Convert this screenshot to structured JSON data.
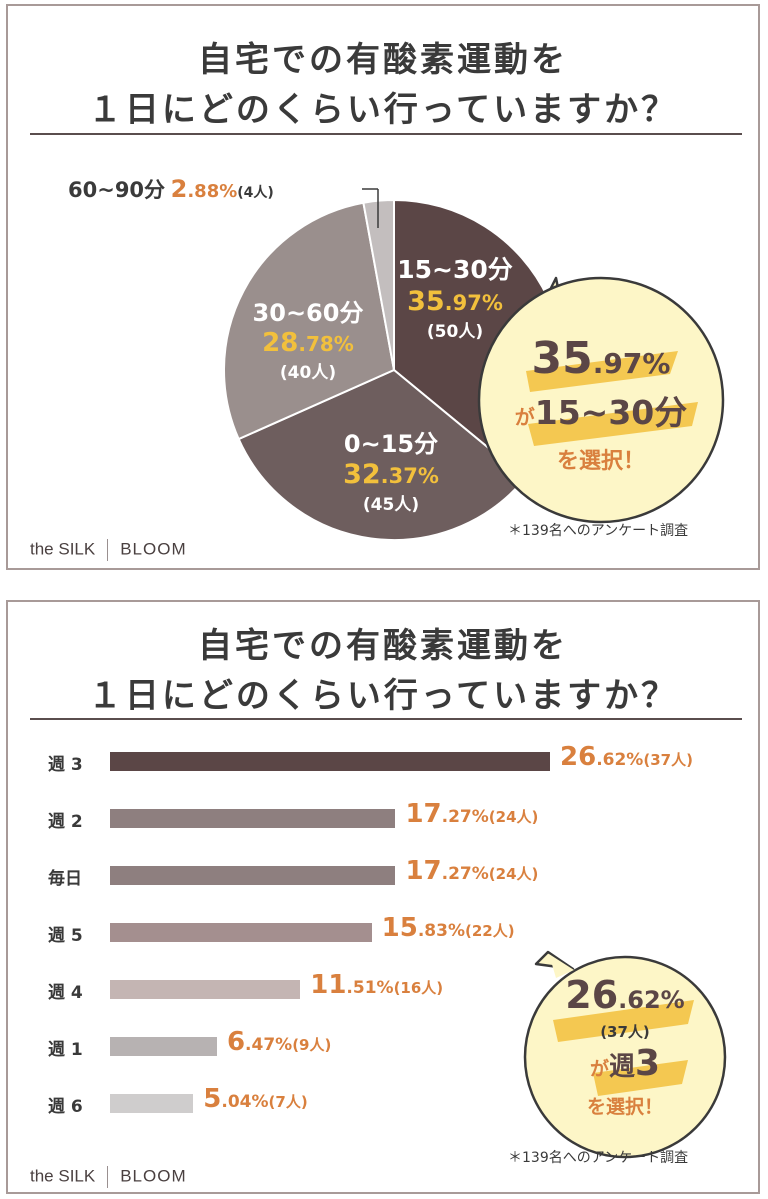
{
  "brand": {
    "name1": "the SILK",
    "name2": "BLOOM"
  },
  "colors": {
    "dark": "#5b4646",
    "orange": "#d9803e",
    "yellow": "#f2c03c",
    "bubble": "#fdf6c7"
  },
  "panel1": {
    "title_line1": "自宅での有酸素運動を",
    "title_line2": "１日にどのくらい行っていますか？",
    "note": "＊139名へのアンケート調査",
    "callout": {
      "pct_int": "35",
      "pct_dec": ".97%",
      "ga": "が",
      "range": "15~30分",
      "select": "を選択！"
    }
  },
  "panel2": {
    "title_line1": "自宅での有酸素運動を",
    "title_line2": "１日にどのくらい行っていますか？",
    "note": "＊139名へのアンケート調査",
    "callout": {
      "pct_int": "26",
      "pct_dec": ".62%",
      "count": "(37人)",
      "ga": "が",
      "week": "週",
      "num": "3",
      "select": "を選択！"
    }
  },
  "chart_data": [
    {
      "type": "pie",
      "title": "自宅での有酸素運動を１日にどのくらい行っていますか？",
      "slices": [
        {
          "label": "15~30分",
          "pct_int": "35",
          "pct_dec": ".97%",
          "count": "(50人)",
          "value": 35.97,
          "color": "#5b4646"
        },
        {
          "label": "0~15分",
          "pct_int": "32",
          "pct_dec": ".37%",
          "count": "(45人)",
          "value": 32.37,
          "color": "#6e5e5e"
        },
        {
          "label": "30~60分",
          "pct_int": "28",
          "pct_dec": ".78%",
          "count": "(40人)",
          "value": 28.78,
          "color": "#9a8f8d"
        },
        {
          "label": "60~90分",
          "pct_int": "2",
          "pct_dec": ".88%",
          "count": "(4人)",
          "value": 2.88,
          "color": "#c3bebe"
        }
      ]
    },
    {
      "type": "bar",
      "orientation": "horizontal",
      "title": "自宅での有酸素運動を１日にどのくらい行っていますか？",
      "xlim": [
        0,
        26.62
      ],
      "bars": [
        {
          "label": "週 3",
          "value": 26.62,
          "pct_int": "26",
          "pct_dec": ".62%",
          "count": "(37人)",
          "color": "#5b4646"
        },
        {
          "label": "週 2",
          "value": 17.27,
          "pct_int": "17",
          "pct_dec": ".27%",
          "count": "(24人)",
          "color": "#8e7f7f"
        },
        {
          "label": "毎日",
          "value": 17.27,
          "pct_int": "17",
          "pct_dec": ".27%",
          "count": "(24人)",
          "color": "#8e7f7f"
        },
        {
          "label": "週 5",
          "value": 15.83,
          "pct_int": "15",
          "pct_dec": ".83%",
          "count": "(22人)",
          "color": "#a48f8f"
        },
        {
          "label": "週 4",
          "value": 11.51,
          "pct_int": "11",
          "pct_dec": ".51%",
          "count": "(16人)",
          "color": "#c4b5b3"
        },
        {
          "label": "週 1",
          "value": 6.47,
          "pct_int": "6",
          "pct_dec": ".47%",
          "count": "(9人)",
          "color": "#b7b2b2"
        },
        {
          "label": "週 6",
          "value": 5.04,
          "pct_int": "5",
          "pct_dec": ".04%",
          "count": "(7人)",
          "color": "#cfcdcd"
        }
      ]
    }
  ]
}
